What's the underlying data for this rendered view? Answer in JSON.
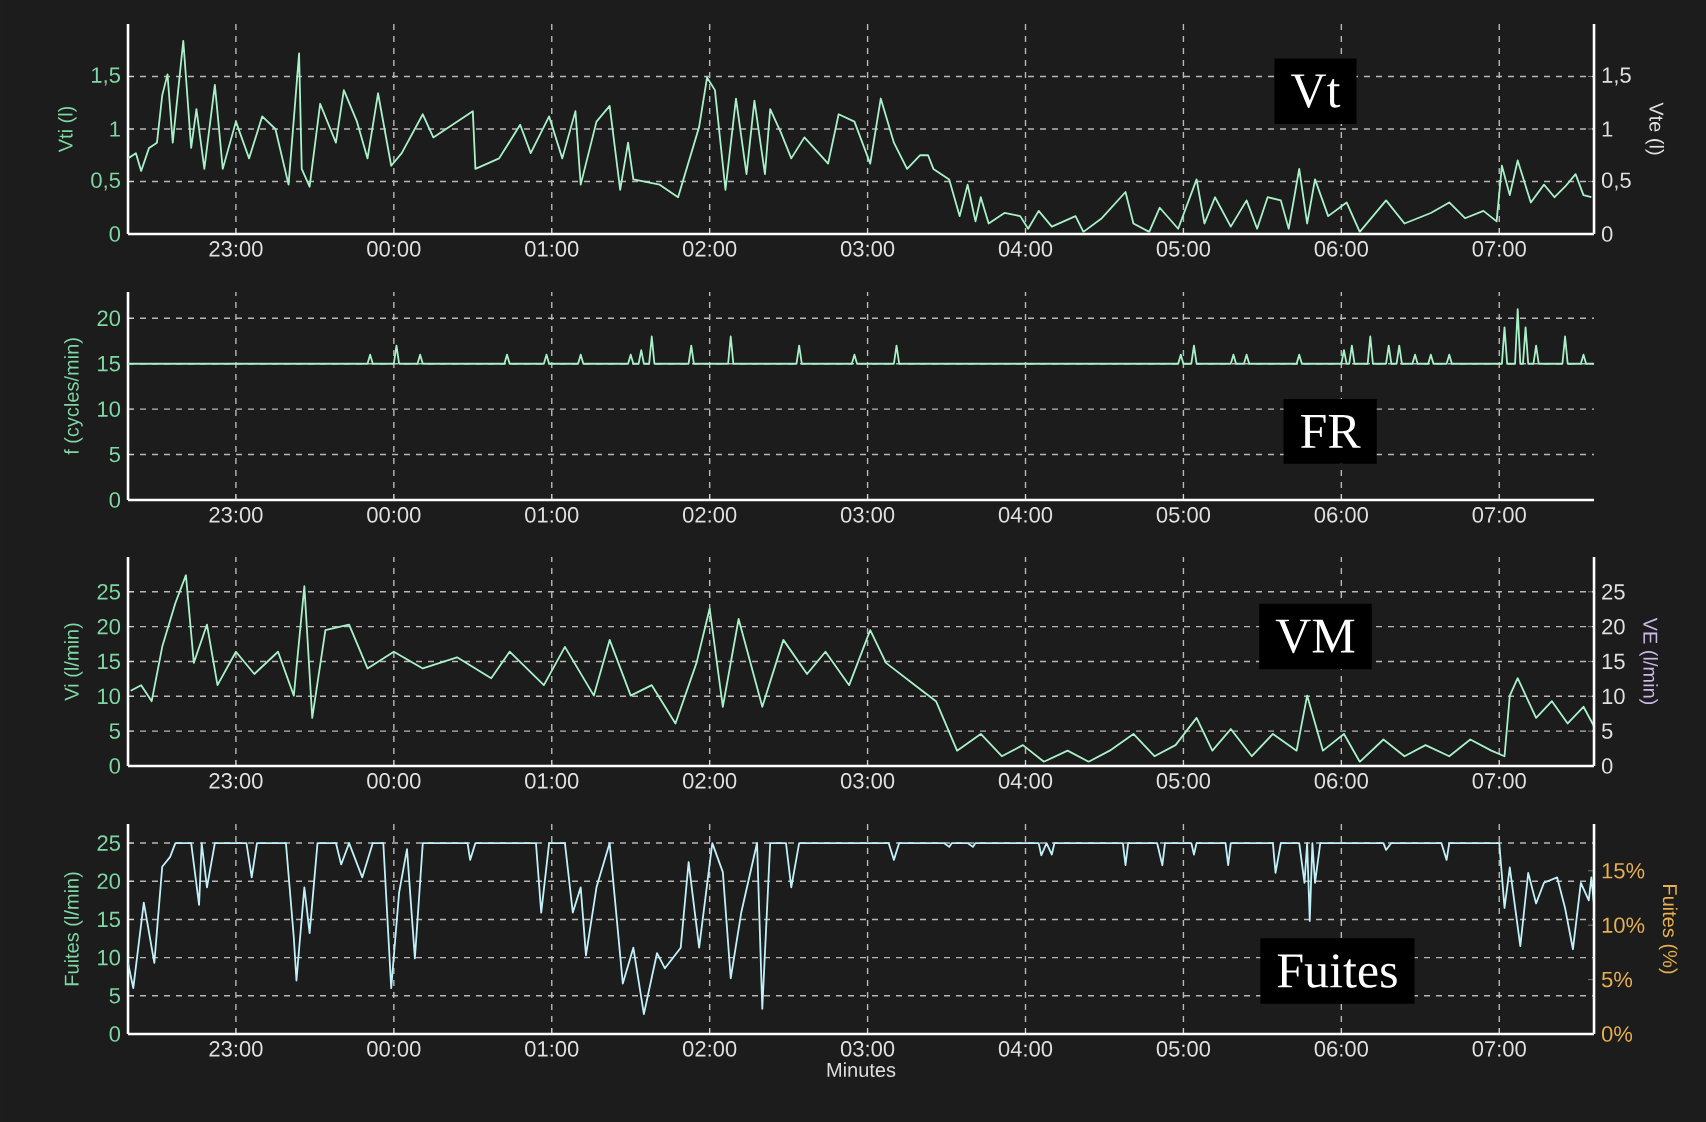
{
  "chart_data": [
    {
      "type": "line",
      "ylabel": "Vti (l)",
      "y2label": "Vte (l)",
      "annotations": [
        "Vt"
      ],
      "grid": true,
      "xlim": [
        "2000-01-01T22:19",
        "2000-01-02T07:36"
      ],
      "xticks": [
        {
          "value": "2000-01-01T23:00",
          "label": "23:00"
        },
        {
          "value": "2000-01-02T00:00",
          "label": "00:00"
        },
        {
          "value": "2000-01-02T01:00",
          "label": "01:00"
        },
        {
          "value": "2000-01-02T02:00",
          "label": "02:00"
        },
        {
          "value": "2000-01-02T03:00",
          "label": "03:00"
        },
        {
          "value": "2000-01-02T04:00",
          "label": "04:00"
        },
        {
          "value": "2000-01-02T05:00",
          "label": "05:00"
        },
        {
          "value": "2000-01-02T06:00",
          "label": "06:00"
        },
        {
          "value": "2000-01-02T07:00",
          "label": "07:00"
        }
      ],
      "ylim": [
        0,
        2.0
      ],
      "yticks": [
        0,
        {
          "value": 0.5,
          "label": "0,5"
        },
        1,
        {
          "value": 1.5,
          "label": "1,5"
        }
      ],
      "y2lim": [
        0,
        2.0
      ],
      "y2ticks": [
        0,
        {
          "value": 0.5,
          "label": "0,5"
        },
        1,
        {
          "value": 1.5,
          "label": "1,5"
        }
      ],
      "series": [
        {
          "color": "#a8f0c8",
          "x": [
            "2000-01-01T22:19",
            "2000-01-01T22:22",
            "2000-01-01T22:24",
            "2000-01-01T22:27",
            "2000-01-01T22:30",
            "2000-01-01T22:32",
            "2000-01-01T22:34",
            "2000-01-01T22:36",
            "2000-01-01T22:40",
            "2000-01-01T22:43",
            "2000-01-01T22:45",
            "2000-01-01T22:48",
            "2000-01-01T22:52",
            "2000-01-01T22:55",
            "2000-01-01T23:00",
            "2000-01-01T23:05",
            "2000-01-01T23:10",
            "2000-01-01T23:15",
            "2000-01-01T23:20",
            "2000-01-01T23:24",
            "2000-01-01T23:25",
            "2000-01-01T23:28",
            "2000-01-01T23:32",
            "2000-01-01T23:38",
            "2000-01-01T23:41",
            "2000-01-01T23:46",
            "2000-01-01T23:50",
            "2000-01-01T23:54",
            "2000-01-01T23:59",
            "2000-01-02T00:03",
            "2000-01-02T00:11",
            "2000-01-02T00:15",
            "2000-01-02T00:30",
            "2000-01-02T00:31",
            "2000-01-02T00:40",
            "2000-01-02T00:48",
            "2000-01-02T00:52",
            "2000-01-02T00:59",
            "2000-01-02T01:04",
            "2000-01-02T01:09",
            "2000-01-02T01:11",
            "2000-01-02T01:17",
            "2000-01-02T01:22",
            "2000-01-02T01:26",
            "2000-01-02T01:29",
            "2000-01-02T01:31",
            "2000-01-02T01:41",
            "2000-01-02T01:48",
            "2000-01-02T01:56",
            "2000-01-02T01:59",
            "2000-01-02T02:02",
            "2000-01-02T02:06",
            "2000-01-02T02:10",
            "2000-01-02T02:14",
            "2000-01-02T02:17",
            "2000-01-02T02:21",
            "2000-01-02T02:23",
            "2000-01-02T02:27",
            "2000-01-02T02:31",
            "2000-01-02T02:36",
            "2000-01-02T02:45",
            "2000-01-02T02:49",
            "2000-01-02T02:55",
            "2000-01-02T03:01",
            "2000-01-02T03:05",
            "2000-01-02T03:10",
            "2000-01-02T03:15",
            "2000-01-02T03:20",
            "2000-01-02T03:23",
            "2000-01-02T03:25",
            "2000-01-02T03:31",
            "2000-01-02T03:35",
            "2000-01-02T03:38",
            "2000-01-02T03:41",
            "2000-01-02T03:43",
            "2000-01-02T03:46",
            "2000-01-02T03:52",
            "2000-01-02T03:58",
            "2000-01-02T04:01",
            "2000-01-02T04:05",
            "2000-01-02T04:10",
            "2000-01-02T04:19",
            "2000-01-02T04:22",
            "2000-01-02T04:29",
            "2000-01-02T04:38",
            "2000-01-02T04:41",
            "2000-01-02T04:47",
            "2000-01-02T04:51",
            "2000-01-02T04:58",
            "2000-01-02T05:05",
            "2000-01-02T05:08",
            "2000-01-02T05:12",
            "2000-01-02T05:18",
            "2000-01-02T05:24",
            "2000-01-02T05:28",
            "2000-01-02T05:32",
            "2000-01-02T05:37",
            "2000-01-02T05:40",
            "2000-01-02T05:44",
            "2000-01-02T05:47",
            "2000-01-02T05:50",
            "2000-01-02T05:55",
            "2000-01-02T06:02",
            "2000-01-02T06:07",
            "2000-01-02T06:17",
            "2000-01-02T06:24",
            "2000-01-02T06:34",
            "2000-01-02T06:41",
            "2000-01-02T06:47",
            "2000-01-02T06:54",
            "2000-01-02T06:59",
            "2000-01-02T07:01",
            "2000-01-02T07:04",
            "2000-01-02T07:07",
            "2000-01-02T07:12",
            "2000-01-02T07:17",
            "2000-01-02T07:21",
            "2000-01-02T07:25",
            "2000-01-02T07:29",
            "2000-01-02T07:32",
            "2000-01-02T07:35"
          ],
          "values": [
            0.72,
            0.77,
            0.6,
            0.82,
            0.87,
            1.32,
            1.52,
            0.87,
            1.84,
            0.82,
            1.19,
            0.62,
            1.42,
            0.62,
            1.07,
            0.72,
            1.12,
            1.0,
            0.47,
            1.72,
            0.62,
            0.45,
            1.24,
            0.87,
            1.37,
            1.07,
            0.72,
            1.34,
            0.65,
            0.77,
            1.14,
            0.92,
            1.17,
            0.62,
            0.72,
            1.04,
            0.77,
            1.12,
            0.72,
            1.17,
            0.47,
            1.07,
            1.22,
            0.42,
            0.87,
            0.52,
            0.47,
            0.35,
            1.02,
            1.49,
            1.37,
            0.42,
            1.29,
            0.57,
            1.27,
            0.57,
            1.19,
            0.97,
            0.72,
            0.92,
            0.67,
            1.14,
            1.07,
            0.67,
            1.29,
            0.87,
            0.62,
            0.75,
            0.75,
            0.62,
            0.52,
            0.17,
            0.47,
            0.12,
            0.35,
            0.1,
            0.2,
            0.17,
            0.05,
            0.22,
            0.07,
            0.17,
            0.02,
            0.15,
            0.4,
            0.1,
            0.02,
            0.25,
            0.05,
            0.52,
            0.1,
            0.35,
            0.07,
            0.32,
            0.05,
            0.35,
            0.32,
            0.05,
            0.62,
            0.1,
            0.52,
            0.17,
            0.3,
            0.02,
            0.32,
            0.1,
            0.2,
            0.3,
            0.15,
            0.22,
            0.12,
            0.65,
            0.37,
            0.7,
            0.3,
            0.47,
            0.35,
            0.45,
            0.57,
            0.37,
            0.35
          ]
        }
      ]
    },
    {
      "type": "line",
      "ylabel": "f (cycles/min)",
      "annotations": [
        "FR"
      ],
      "grid": true,
      "xlim": [
        "2000-01-01T22:19",
        "2000-01-02T07:36"
      ],
      "xticks": [
        {
          "value": "2000-01-01T23:00",
          "label": "23:00"
        },
        {
          "value": "2000-01-02T00:00",
          "label": "00:00"
        },
        {
          "value": "2000-01-02T01:00",
          "label": "01:00"
        },
        {
          "value": "2000-01-02T02:00",
          "label": "02:00"
        },
        {
          "value": "2000-01-02T03:00",
          "label": "03:00"
        },
        {
          "value": "2000-01-02T04:00",
          "label": "04:00"
        },
        {
          "value": "2000-01-02T05:00",
          "label": "05:00"
        },
        {
          "value": "2000-01-02T06:00",
          "label": "06:00"
        },
        {
          "value": "2000-01-02T07:00",
          "label": "07:00"
        }
      ],
      "ylim": [
        0,
        22.9
      ],
      "yticks": [
        0,
        5,
        10,
        15,
        20
      ],
      "series": [
        {
          "color": "#a8f0c8",
          "x": [
            "2000-01-01T22:19",
            "2000-01-01T23:50",
            "2000-01-01T23:51",
            "2000-01-01T23:52",
            "2000-01-02T00:00",
            "2000-01-02T00:01",
            "2000-01-02T00:02",
            "2000-01-02T00:09",
            "2000-01-02T00:10",
            "2000-01-02T00:11",
            "2000-01-02T00:42",
            "2000-01-02T00:43",
            "2000-01-02T00:44",
            "2000-01-02T00:57",
            "2000-01-02T00:58",
            "2000-01-02T00:59",
            "2000-01-02T01:10",
            "2000-01-02T01:11",
            "2000-01-02T01:12",
            "2000-01-02T01:29",
            "2000-01-02T01:30",
            "2000-01-02T01:31",
            "2000-01-02T01:33",
            "2000-01-02T01:34",
            "2000-01-02T01:35",
            "2000-01-02T01:37",
            "2000-01-02T01:38",
            "2000-01-02T01:39",
            "2000-01-02T01:52",
            "2000-01-02T01:53",
            "2000-01-02T01:54",
            "2000-01-02T02:07",
            "2000-01-02T02:08",
            "2000-01-02T02:09",
            "2000-01-02T02:33",
            "2000-01-02T02:34",
            "2000-01-02T02:35",
            "2000-01-02T02:54",
            "2000-01-02T02:55",
            "2000-01-02T02:56",
            "2000-01-02T03:10",
            "2000-01-02T03:11",
            "2000-01-02T03:12",
            "2000-01-02T04:58",
            "2000-01-02T04:59",
            "2000-01-02T05:00",
            "2000-01-02T05:03",
            "2000-01-02T05:04",
            "2000-01-02T05:05",
            "2000-01-02T05:18",
            "2000-01-02T05:19",
            "2000-01-02T05:20",
            "2000-01-02T05:23",
            "2000-01-02T05:24",
            "2000-01-02T05:25",
            "2000-01-02T05:43",
            "2000-01-02T05:44",
            "2000-01-02T05:45",
            "2000-01-02T06:00",
            "2000-01-02T06:01",
            "2000-01-02T06:02",
            "2000-01-02T06:03",
            "2000-01-02T06:04",
            "2000-01-02T06:05",
            "2000-01-02T06:10",
            "2000-01-02T06:11",
            "2000-01-02T06:12",
            "2000-01-02T06:17",
            "2000-01-02T06:18",
            "2000-01-02T06:19",
            "2000-01-02T06:21",
            "2000-01-02T06:22",
            "2000-01-02T06:23",
            "2000-01-02T06:27",
            "2000-01-02T06:28",
            "2000-01-02T06:29",
            "2000-01-02T06:33",
            "2000-01-02T06:34",
            "2000-01-02T06:35",
            "2000-01-02T06:40",
            "2000-01-02T06:41",
            "2000-01-02T06:42",
            "2000-01-02T07:01",
            "2000-01-02T07:02",
            "2000-01-02T07:03",
            "2000-01-02T07:06",
            "2000-01-02T07:07",
            "2000-01-02T07:08",
            "2000-01-02T07:09",
            "2000-01-02T07:10",
            "2000-01-02T07:11",
            "2000-01-02T07:13",
            "2000-01-02T07:14",
            "2000-01-02T07:15",
            "2000-01-02T07:24",
            "2000-01-02T07:25",
            "2000-01-02T07:26",
            "2000-01-02T07:31",
            "2000-01-02T07:32",
            "2000-01-02T07:33",
            "2000-01-02T07:36"
          ],
          "values": [
            15,
            15,
            16,
            15,
            15,
            17,
            15,
            15,
            16,
            15,
            15,
            16,
            15,
            15,
            16,
            15,
            15,
            16,
            15,
            15,
            16,
            15,
            15,
            16.5,
            15,
            15,
            18,
            15,
            15,
            17,
            15,
            15,
            18,
            15,
            15,
            17,
            15,
            15,
            16,
            15,
            15,
            17,
            15,
            15,
            16,
            15,
            15,
            17,
            15,
            15,
            16,
            15,
            15,
            16,
            15,
            15,
            16,
            15,
            15,
            16.5,
            15,
            15,
            17,
            15,
            15,
            18,
            15,
            15,
            17,
            15,
            15,
            17,
            15,
            15,
            16,
            15,
            15,
            16,
            15,
            15,
            16,
            15,
            15,
            19,
            15,
            15,
            21,
            15,
            15,
            19,
            15,
            15,
            17,
            15,
            15,
            18,
            15,
            15,
            16,
            15,
            15
          ]
        }
      ]
    },
    {
      "type": "line",
      "ylabel": "Vi (l/min)",
      "y2label": "VE (l/min)",
      "annotations": [
        "VM"
      ],
      "grid": true,
      "xlim": [
        "2000-01-01T22:19",
        "2000-01-02T07:36"
      ],
      "xticks": [
        {
          "value": "2000-01-01T23:00",
          "label": "23:00"
        },
        {
          "value": "2000-01-02T00:00",
          "label": "00:00"
        },
        {
          "value": "2000-01-02T01:00",
          "label": "01:00"
        },
        {
          "value": "2000-01-02T02:00",
          "label": "02:00"
        },
        {
          "value": "2000-01-02T03:00",
          "label": "03:00"
        },
        {
          "value": "2000-01-02T04:00",
          "label": "04:00"
        },
        {
          "value": "2000-01-02T05:00",
          "label": "05:00"
        },
        {
          "value": "2000-01-02T06:00",
          "label": "06:00"
        },
        {
          "value": "2000-01-02T07:00",
          "label": "07:00"
        }
      ],
      "ylim": [
        0,
        30
      ],
      "yticks": [
        0,
        5,
        10,
        15,
        20,
        25
      ],
      "y2lim": [
        0,
        30
      ],
      "y2ticks": [
        0,
        5,
        10,
        15,
        20,
        25
      ],
      "series": [
        {
          "color": "#a8f0c8",
          "x": [
            "2000-01-01T22:20",
            "2000-01-01T22:24",
            "2000-01-01T22:28",
            "2000-01-01T22:32",
            "2000-01-01T22:37",
            "2000-01-01T22:41",
            "2000-01-01T22:44",
            "2000-01-01T22:49",
            "2000-01-01T22:53",
            "2000-01-01T23:00",
            "2000-01-01T23:07",
            "2000-01-01T23:16",
            "2000-01-01T23:22",
            "2000-01-01T23:26",
            "2000-01-01T23:29",
            "2000-01-01T23:34",
            "2000-01-01T23:43",
            "2000-01-01T23:50",
            "2000-01-02T00:00",
            "2000-01-02T00:11",
            "2000-01-02T00:24",
            "2000-01-02T00:37",
            "2000-01-02T00:44",
            "2000-01-02T00:57",
            "2000-01-02T01:05",
            "2000-01-02T01:16",
            "2000-01-02T01:22",
            "2000-01-02T01:30",
            "2000-01-02T01:38",
            "2000-01-02T01:47",
            "2000-01-02T01:55",
            "2000-01-02T02:00",
            "2000-01-02T02:05",
            "2000-01-02T02:11",
            "2000-01-02T02:20",
            "2000-01-02T02:28",
            "2000-01-02T02:37",
            "2000-01-02T02:44",
            "2000-01-02T02:53",
            "2000-01-02T03:01",
            "2000-01-02T03:07",
            "2000-01-02T03:18",
            "2000-01-02T03:26",
            "2000-01-02T03:34",
            "2000-01-02T03:43",
            "2000-01-02T03:51",
            "2000-01-02T03:59",
            "2000-01-02T04:07",
            "2000-01-02T04:16",
            "2000-01-02T04:24",
            "2000-01-02T04:32",
            "2000-01-02T04:41",
            "2000-01-02T04:49",
            "2000-01-02T04:57",
            "2000-01-02T05:05",
            "2000-01-02T05:11",
            "2000-01-02T05:18",
            "2000-01-02T05:26",
            "2000-01-02T05:34",
            "2000-01-02T05:43",
            "2000-01-02T05:47",
            "2000-01-02T05:53",
            "2000-01-02T06:01",
            "2000-01-02T06:07",
            "2000-01-02T06:16",
            "2000-01-02T06:24",
            "2000-01-02T06:32",
            "2000-01-02T06:41",
            "2000-01-02T06:49",
            "2000-01-02T06:57",
            "2000-01-02T07:02",
            "2000-01-02T07:04",
            "2000-01-02T07:07",
            "2000-01-02T07:14",
            "2000-01-02T07:20",
            "2000-01-02T07:26",
            "2000-01-02T07:32",
            "2000-01-02T07:36"
          ],
          "values": [
            10.8,
            11.6,
            9.3,
            17.1,
            23.4,
            27.4,
            14.8,
            20.3,
            11.6,
            16.4,
            13.2,
            16.4,
            10.1,
            25.8,
            6.9,
            19.5,
            20.3,
            14.0,
            16.4,
            14.0,
            15.6,
            12.6,
            16.4,
            11.6,
            17.1,
            10.1,
            18.1,
            10.1,
            11.6,
            6.1,
            14.8,
            22.6,
            8.5,
            21.1,
            8.5,
            18.1,
            13.2,
            16.4,
            11.6,
            19.5,
            14.8,
            11.6,
            9.3,
            2.2,
            4.6,
            1.4,
            3.0,
            0.6,
            2.2,
            0.6,
            2.2,
            4.6,
            1.4,
            3.0,
            6.9,
            2.2,
            5.3,
            1.4,
            4.6,
            2.2,
            10.1,
            2.2,
            4.6,
            0.6,
            3.8,
            1.4,
            3.0,
            1.4,
            3.8,
            2.2,
            1.4,
            10.1,
            12.6,
            6.9,
            9.3,
            6.1,
            8.5,
            5.7
          ]
        }
      ]
    },
    {
      "type": "line",
      "ylabel": "Fuites (l/min)",
      "y2label": "Fuites (%)",
      "xlabel": "Minutes",
      "annotations": [
        "Fuites"
      ],
      "grid": true,
      "xlim": [
        "2000-01-01T22:19",
        "2000-01-02T07:36"
      ],
      "xticks": [
        {
          "value": "2000-01-01T23:00",
          "label": "23:00"
        },
        {
          "value": "2000-01-02T00:00",
          "label": "00:00"
        },
        {
          "value": "2000-01-02T01:00",
          "label": "01:00"
        },
        {
          "value": "2000-01-02T02:00",
          "label": "02:00"
        },
        {
          "value": "2000-01-02T03:00",
          "label": "03:00"
        },
        {
          "value": "2000-01-02T04:00",
          "label": "04:00"
        },
        {
          "value": "2000-01-02T05:00",
          "label": "05:00"
        },
        {
          "value": "2000-01-02T06:00",
          "label": "06:00"
        },
        {
          "value": "2000-01-02T07:00",
          "label": "07:00"
        }
      ],
      "ylim": [
        0,
        27.5
      ],
      "yticks": [
        0,
        5,
        10,
        15,
        20,
        25
      ],
      "y2lim": [
        0,
        19.3
      ],
      "y2ticks": [
        {
          "value": 0,
          "label": "0%"
        },
        {
          "value": 5,
          "label": "5%"
        },
        {
          "value": 10,
          "label": "10%"
        },
        {
          "value": 15,
          "label": "15%"
        }
      ],
      "series": [
        {
          "color": "#c0f0f8",
          "x": [
            "2000-01-01T22:19",
            "2000-01-01T22:21",
            "2000-01-01T22:25",
            "2000-01-01T22:29",
            "2000-01-01T22:32",
            "2000-01-01T22:35",
            "2000-01-01T22:37",
            "2000-01-01T22:43",
            "2000-01-01T22:46",
            "2000-01-01T22:47",
            "2000-01-01T22:49",
            "2000-01-01T22:52",
            "2000-01-01T23:04",
            "2000-01-01T23:06",
            "2000-01-01T23:08",
            "2000-01-01T23:19",
            "2000-01-01T23:22",
            "2000-01-01T23:23",
            "2000-01-01T23:26",
            "2000-01-01T23:28",
            "2000-01-01T23:31",
            "2000-01-01T23:38",
            "2000-01-01T23:40",
            "2000-01-01T23:43",
            "2000-01-01T23:48",
            "2000-01-01T23:52",
            "2000-01-01T23:56",
            "2000-01-01T23:59",
            "2000-01-02T00:02",
            "2000-01-02T00:05",
            "2000-01-02T00:08",
            "2000-01-02T00:11",
            "2000-01-02T00:28",
            "2000-01-02T00:29",
            "2000-01-02T00:31",
            "2000-01-02T00:54",
            "2000-01-02T00:56",
            "2000-01-02T00:59",
            "2000-01-02T01:05",
            "2000-01-02T01:08",
            "2000-01-02T01:11",
            "2000-01-02T01:13",
            "2000-01-02T01:17",
            "2000-01-02T01:22",
            "2000-01-02T01:27",
            "2000-01-02T01:31",
            "2000-01-02T01:35",
            "2000-01-02T01:40",
            "2000-01-02T01:43",
            "2000-01-02T01:49",
            "2000-01-02T01:52",
            "2000-01-02T01:56",
            "2000-01-02T02:01",
            "2000-01-02T02:05",
            "2000-01-02T02:08",
            "2000-01-02T02:12",
            "2000-01-02T02:18",
            "2000-01-02T02:20",
            "2000-01-02T02:23",
            "2000-01-02T02:29",
            "2000-01-02T02:31",
            "2000-01-02T02:34",
            "2000-01-02T03:08",
            "2000-01-02T03:10",
            "2000-01-02T03:12",
            "2000-01-02T03:29",
            "2000-01-02T03:31",
            "2000-01-02T03:32",
            "2000-01-02T03:38",
            "2000-01-02T03:40",
            "2000-01-02T03:41",
            "2000-01-02T04:05",
            "2000-01-02T04:06",
            "2000-01-02T04:08",
            "2000-01-02T04:10",
            "2000-01-02T04:11",
            "2000-01-02T04:37",
            "2000-01-02T04:38",
            "2000-01-02T04:39",
            "2000-01-02T04:50",
            "2000-01-02T04:52",
            "2000-01-02T04:53",
            "2000-01-02T05:03",
            "2000-01-02T05:04",
            "2000-01-02T05:05",
            "2000-01-02T05:16",
            "2000-01-02T05:17",
            "2000-01-02T05:18",
            "2000-01-02T05:34",
            "2000-01-02T05:35",
            "2000-01-02T05:37",
            "2000-01-02T05:44",
            "2000-01-02T05:46",
            "2000-01-02T05:47",
            "2000-01-02T05:48",
            "2000-01-02T05:49",
            "2000-01-02T05:50",
            "2000-01-02T05:52",
            "2000-01-02T06:16",
            "2000-01-02T06:17",
            "2000-01-02T06:19",
            "2000-01-02T06:38",
            "2000-01-02T06:40",
            "2000-01-02T06:41",
            "2000-01-02T07:00",
            "2000-01-02T07:02",
            "2000-01-02T07:04",
            "2000-01-02T07:08",
            "2000-01-02T07:11",
            "2000-01-02T07:14",
            "2000-01-02T07:17",
            "2000-01-02T07:22",
            "2000-01-02T07:25",
            "2000-01-02T07:28",
            "2000-01-02T07:31",
            "2000-01-02T07:34",
            "2000-01-02T07:35",
            "2000-01-02T07:36"
          ],
          "values": [
            9.3,
            6.0,
            17.2,
            9.3,
            21.9,
            23.2,
            25,
            25,
            16.9,
            25,
            19.2,
            25,
            25,
            20.5,
            25,
            25,
            12.6,
            7.0,
            19.2,
            13.2,
            25,
            25,
            22.2,
            25,
            20.5,
            25,
            25,
            6.0,
            18.5,
            24.2,
            9.9,
            25,
            25,
            22.8,
            25,
            25,
            15.9,
            25,
            25,
            15.9,
            19.2,
            10.3,
            19.2,
            25,
            6.6,
            11.3,
            2.6,
            10.6,
            8.6,
            11.3,
            22.5,
            11.3,
            25,
            21.2,
            7.3,
            15.9,
            25,
            3.3,
            25,
            25,
            19.2,
            25,
            25,
            22.8,
            25,
            25,
            24.5,
            25,
            25,
            24.5,
            25,
            25,
            23.4,
            25,
            23.5,
            25,
            25,
            22.1,
            25,
            25,
            22.1,
            25,
            25,
            23.5,
            25,
            25,
            22.1,
            25,
            25,
            21.1,
            25,
            25,
            19.8,
            25,
            14.8,
            25,
            19.8,
            25,
            25,
            24.1,
            25,
            25,
            22.8,
            25,
            25,
            16.5,
            21.8,
            11.5,
            21.1,
            17.1,
            19.8,
            20.5,
            16.5,
            11.1,
            19.8,
            17.5,
            20.5,
            17
          ]
        }
      ]
    }
  ]
}
